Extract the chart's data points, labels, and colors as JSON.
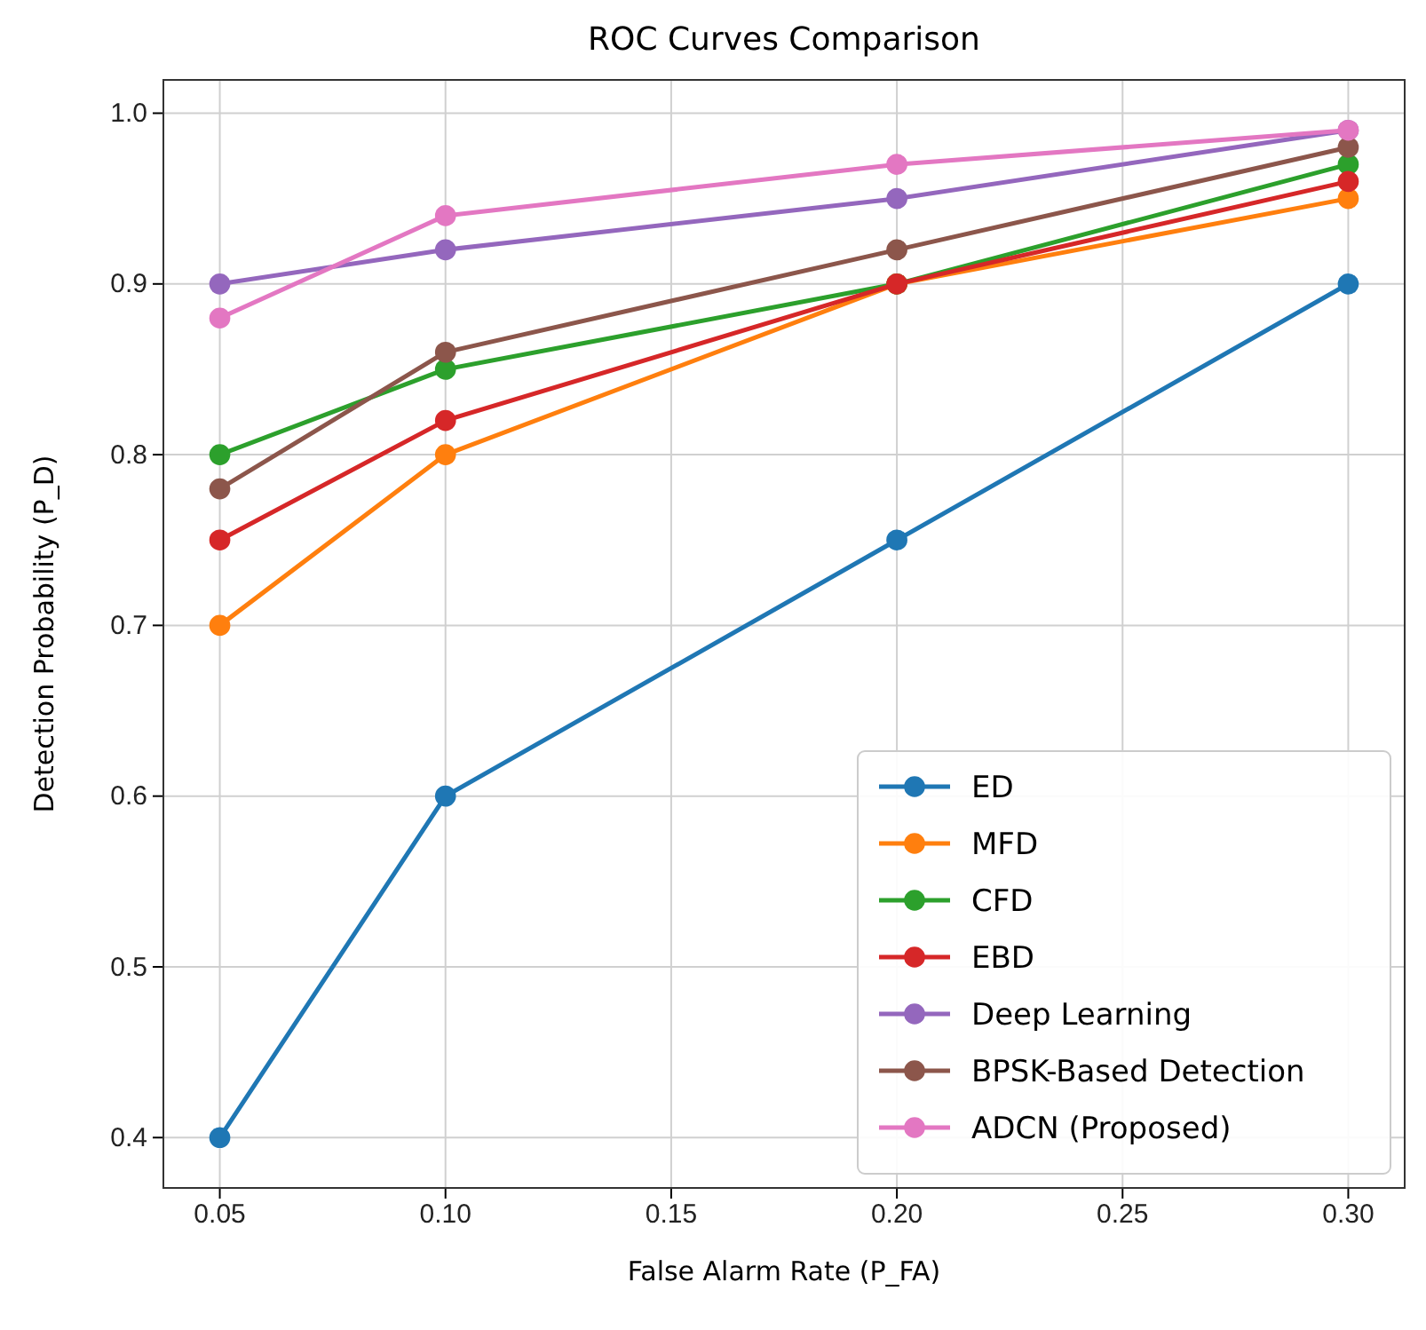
{
  "chart_data": {
    "type": "line",
    "title": "ROC Curves Comparison",
    "xlabel": "False Alarm Rate (P_FA)",
    "ylabel": "Detection Probability (P_D)",
    "x": [
      0.05,
      0.1,
      0.2,
      0.3
    ],
    "xlim": [
      0.0375,
      0.3125
    ],
    "xticks": [
      0.05,
      {
        "value": 0.1,
        "label": "0.10"
      },
      0.15,
      {
        "value": 0.2,
        "label": "0.20"
      },
      0.25,
      {
        "value": 0.3,
        "label": "0.30"
      }
    ],
    "ylim": [
      0.3705,
      1.0195
    ],
    "yticks": [
      0.4,
      0.5,
      0.6,
      0.7,
      0.8,
      0.9,
      {
        "value": 1,
        "label": "1.0"
      }
    ],
    "grid": true,
    "legend": "bottom right",
    "marker": "circle",
    "line_style": "solid",
    "series": [
      {
        "name": "ED",
        "color": "#1f77b4",
        "values": [
          0.4,
          0.6,
          0.75,
          0.9
        ]
      },
      {
        "name": "MFD",
        "color": "#ff7f0e",
        "values": [
          0.7,
          0.8,
          0.9,
          0.95
        ]
      },
      {
        "name": "CFD",
        "color": "#2ca02c",
        "values": [
          0.8,
          0.85,
          0.9,
          0.97
        ]
      },
      {
        "name": "EBD",
        "color": "#d62728",
        "values": [
          0.75,
          0.82,
          0.9,
          0.96
        ]
      },
      {
        "name": "Deep Learning",
        "color": "#9467bd",
        "values": [
          0.9,
          0.92,
          0.95,
          0.99
        ]
      },
      {
        "name": "BPSK-Based Detection",
        "color": "#8c564b",
        "values": [
          0.78,
          0.86,
          0.92,
          0.98
        ]
      },
      {
        "name": "ADCN (Proposed)",
        "color": "#e377c2",
        "values": [
          0.88,
          0.94,
          0.97,
          0.99
        ]
      }
    ]
  }
}
